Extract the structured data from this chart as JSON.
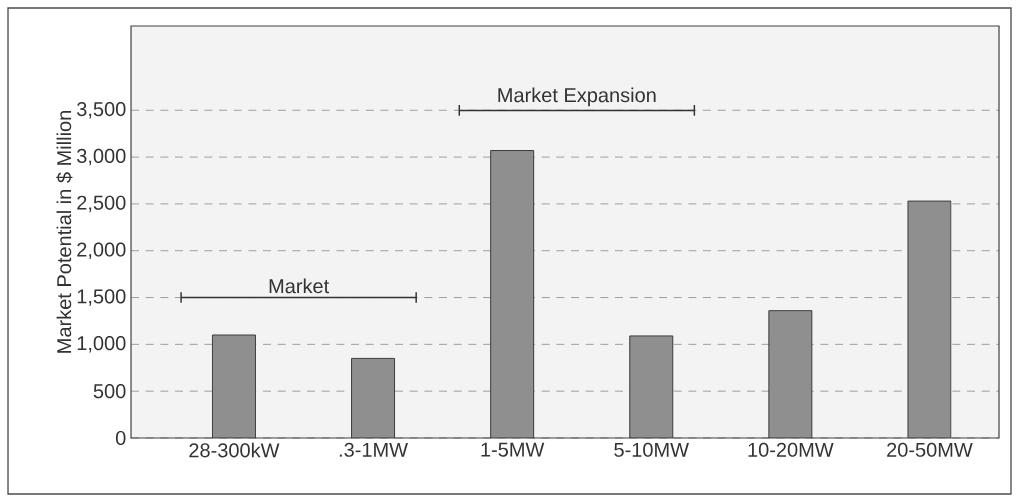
{
  "chart_data": {
    "type": "bar",
    "ylabel": "Market Potential in $ Million",
    "categories": [
      "28-300kW",
      ".3-1MW",
      "1-5MW",
      "5-10MW",
      "10-20MW",
      "20-50MW"
    ],
    "values": [
      1100,
      850,
      3070,
      1090,
      1360,
      2530
    ],
    "color": "#8f8f8f",
    "ylim": [
      0,
      4400
    ],
    "yticks": [
      0,
      500,
      {
        "value": 1000,
        "label": "1,000"
      },
      {
        "value": 1500,
        "label": "1,500"
      },
      {
        "value": 2000,
        "label": "2,000"
      },
      {
        "value": 2500,
        "label": "2,500"
      },
      {
        "value": 3000,
        "label": "3,000"
      },
      {
        "value": 3500,
        "label": "3,500"
      }
    ],
    "grid": "y",
    "annotations": [
      "Market",
      "Market Expansion"
    ]
  }
}
